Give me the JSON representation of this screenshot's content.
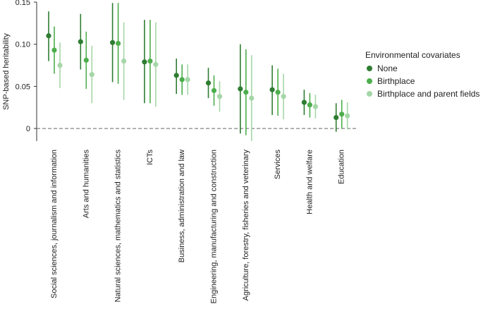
{
  "chart_data": {
    "type": "scatter",
    "ylabel": "SNP-based heritability",
    "ylim": [
      -0.015,
      0.15
    ],
    "yticks": [
      0,
      0.05,
      0.1,
      0.15
    ],
    "ytick_labels": [
      "0",
      "0.05",
      "0.10",
      "0.15"
    ],
    "reference_line": 0,
    "categories": [
      "Social sciences, journalism and information",
      "Arts and humanities",
      "Natural sciences, mathematics and statistics",
      "ICTs",
      "Business, administration and law",
      "Engineering, manufacturing and construction",
      "Agriculture, forestry, fisheries and veterinary",
      "Services",
      "Health and welfare",
      "Education"
    ],
    "legend_title": "Environmental covariates",
    "series": [
      {
        "name": "None",
        "color": "#2e7d32",
        "values": [
          0.11,
          0.103,
          0.102,
          0.079,
          0.063,
          0.054,
          0.047,
          0.046,
          0.031,
          0.013
        ],
        "lower": [
          0.08,
          0.07,
          0.055,
          0.03,
          0.041,
          0.036,
          -0.006,
          0.016,
          0.016,
          -0.004
        ],
        "upper": [
          0.139,
          0.136,
          0.149,
          0.129,
          0.083,
          0.072,
          0.1,
          0.075,
          0.046,
          0.03
        ]
      },
      {
        "name": "Birthplace",
        "color": "#4cae4c",
        "values": [
          0.093,
          0.081,
          0.101,
          0.08,
          0.058,
          0.045,
          0.043,
          0.043,
          0.028,
          0.017
        ],
        "lower": [
          0.065,
          0.047,
          0.053,
          0.03,
          0.04,
          0.027,
          -0.008,
          0.015,
          0.013,
          0.0
        ],
        "upper": [
          0.121,
          0.115,
          0.149,
          0.129,
          0.076,
          0.063,
          0.094,
          0.071,
          0.042,
          0.034
        ]
      },
      {
        "name": "Birthplace and parent fields",
        "color": "#a5d6a7",
        "values": [
          0.075,
          0.064,
          0.08,
          0.076,
          0.058,
          0.038,
          0.036,
          0.038,
          0.026,
          0.015
        ],
        "lower": [
          0.048,
          0.03,
          0.034,
          0.026,
          0.04,
          0.02,
          -0.015,
          0.011,
          0.012,
          -0.001
        ],
        "upper": [
          0.102,
          0.098,
          0.126,
          0.126,
          0.076,
          0.056,
          0.087,
          0.065,
          0.04,
          0.031
        ]
      }
    ]
  }
}
